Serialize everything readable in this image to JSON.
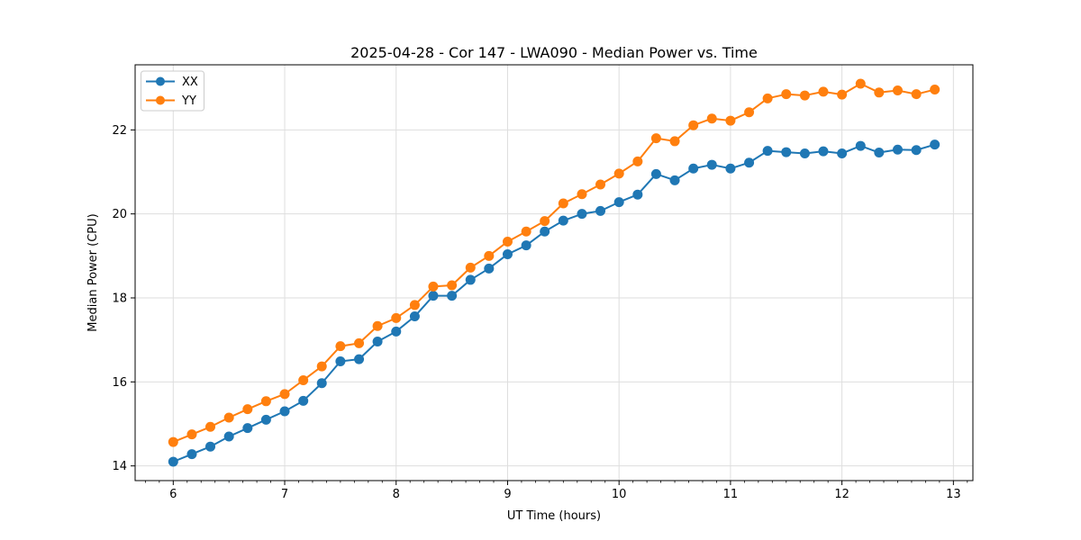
{
  "chart_data": {
    "type": "line",
    "title": "2025-04-28 - Cor 147 - LWA090 - Median Power vs. Time",
    "xlabel": "UT Time (hours)",
    "ylabel": "Median Power (CPU)",
    "xlim": [
      5.658,
      13.175
    ],
    "ylim": [
      13.65,
      23.55
    ],
    "xticks": [
      6,
      7,
      8,
      9,
      10,
      11,
      12,
      13
    ],
    "yticks": [
      14,
      16,
      18,
      20,
      22
    ],
    "minor_xtick_step": 0.125,
    "grid": true,
    "grid_color": "#dedede",
    "legend_position": "upper left",
    "x": [
      6.0,
      6.167,
      6.333,
      6.5,
      6.667,
      6.833,
      7.0,
      7.167,
      7.333,
      7.5,
      7.667,
      7.833,
      8.0,
      8.167,
      8.333,
      8.5,
      8.667,
      8.833,
      9.0,
      9.167,
      9.333,
      9.5,
      9.667,
      9.833,
      10.0,
      10.167,
      10.333,
      10.5,
      10.667,
      10.833,
      11.0,
      11.167,
      11.333,
      11.5,
      11.667,
      11.833,
      12.0,
      12.167,
      12.333,
      12.5,
      12.667,
      12.833
    ],
    "series": [
      {
        "name": "XX",
        "color": "#1f77b4",
        "values": [
          14.1,
          14.28,
          14.46,
          14.7,
          14.9,
          15.1,
          15.3,
          15.55,
          15.97,
          16.49,
          16.54,
          16.96,
          17.2,
          17.56,
          18.05,
          18.05,
          18.43,
          18.7,
          19.04,
          19.25,
          19.58,
          19.84,
          20.0,
          20.07,
          20.28,
          20.46,
          20.95,
          20.8,
          21.08,
          21.17,
          21.08,
          21.22,
          21.5,
          21.47,
          21.44,
          21.49,
          21.44,
          21.62,
          21.46,
          21.53,
          21.52,
          21.65
        ]
      },
      {
        "name": "YY",
        "color": "#ff7f0e",
        "values": [
          14.57,
          14.75,
          14.93,
          15.15,
          15.35,
          15.54,
          15.71,
          16.04,
          16.37,
          16.85,
          16.92,
          17.33,
          17.52,
          17.83,
          18.27,
          18.3,
          18.72,
          19.0,
          19.34,
          19.58,
          19.83,
          20.25,
          20.47,
          20.7,
          20.96,
          21.25,
          21.8,
          21.73,
          22.11,
          22.27,
          22.22,
          22.42,
          22.75,
          22.85,
          22.82,
          22.91,
          22.84,
          23.1,
          22.89,
          22.94,
          22.85,
          22.96
        ]
      }
    ]
  },
  "style": {
    "spine_color": "#000000",
    "tick_color": "#000000",
    "legend_border_color": "#cccccc",
    "legend_background": "#ffffff",
    "plot_background": "#ffffff"
  }
}
